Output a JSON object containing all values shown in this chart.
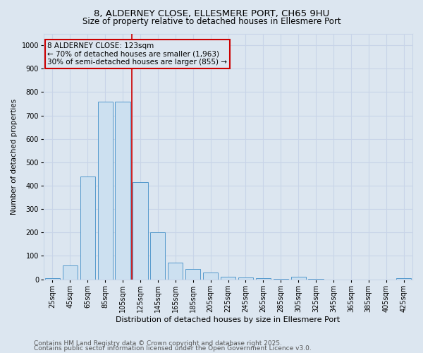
{
  "title_line1": "8, ALDERNEY CLOSE, ELLESMERE PORT, CH65 9HU",
  "title_line2": "Size of property relative to detached houses in Ellesmere Port",
  "xlabel": "Distribution of detached houses by size in Ellesmere Port",
  "ylabel": "Number of detached properties",
  "categories": [
    "25sqm",
    "45sqm",
    "65sqm",
    "85sqm",
    "105sqm",
    "125sqm",
    "145sqm",
    "165sqm",
    "185sqm",
    "205sqm",
    "225sqm",
    "245sqm",
    "265sqm",
    "285sqm",
    "305sqm",
    "325sqm",
    "345sqm",
    "365sqm",
    "385sqm",
    "405sqm",
    "425sqm"
  ],
  "values": [
    5,
    60,
    440,
    760,
    760,
    415,
    200,
    70,
    45,
    28,
    12,
    8,
    5,
    3,
    10,
    2,
    0,
    0,
    0,
    0,
    5
  ],
  "bar_color": "#cce0f0",
  "bar_edge_color": "#5599cc",
  "grid_color": "#c8d4e8",
  "background_color": "#dce6f0",
  "vline_color": "#cc0000",
  "vline_x_index": 4.5,
  "annotation_text": "8 ALDERNEY CLOSE: 123sqm\n← 70% of detached houses are smaller (1,963)\n30% of semi-detached houses are larger (855) →",
  "annotation_box_color": "#cc0000",
  "ylim": [
    0,
    1050
  ],
  "yticks": [
    0,
    100,
    200,
    300,
    400,
    500,
    600,
    700,
    800,
    900,
    1000
  ],
  "footer_line1": "Contains HM Land Registry data © Crown copyright and database right 2025.",
  "footer_line2": "Contains public sector information licensed under the Open Government Licence v3.0.",
  "title_fontsize": 9.5,
  "subtitle_fontsize": 8.5,
  "axis_label_fontsize": 8,
  "tick_fontsize": 7,
  "annotation_fontsize": 7.5,
  "footer_fontsize": 6.5,
  "ylabel_fontsize": 7.5
}
